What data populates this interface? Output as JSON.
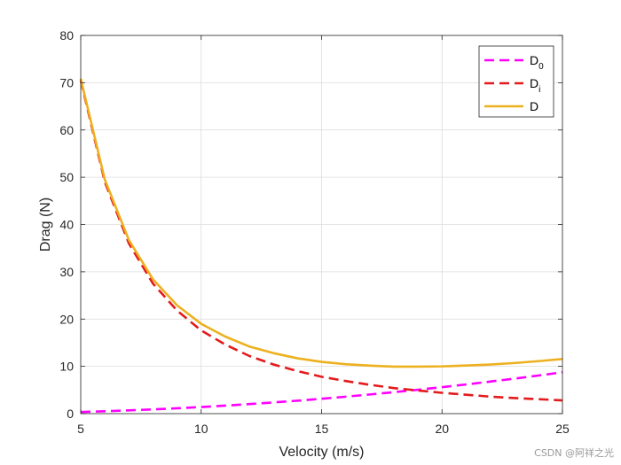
{
  "chart_data": {
    "type": "line",
    "xlabel": "Velocity (m/s)",
    "ylabel": "Drag (N)",
    "xlim": [
      5,
      25
    ],
    "ylim": [
      0,
      80
    ],
    "xticks": [
      5,
      10,
      15,
      20,
      25
    ],
    "yticks": [
      0,
      10,
      20,
      30,
      40,
      50,
      60,
      70,
      80
    ],
    "grid": true,
    "legend_position": "top-right",
    "x": [
      5,
      6,
      7,
      8,
      9,
      10,
      11,
      12,
      13,
      14,
      15,
      16,
      17,
      18,
      19,
      20,
      21,
      22,
      23,
      24,
      25
    ],
    "series": [
      {
        "name": "D",
        "legend_main": "D",
        "legend_sub": "0",
        "color": "#ff00ff",
        "dash": "dashed",
        "values": [
          0.35,
          0.5,
          0.69,
          0.9,
          1.13,
          1.4,
          1.69,
          2.02,
          2.37,
          2.74,
          3.15,
          3.58,
          4.05,
          4.54,
          5.05,
          5.6,
          6.17,
          6.78,
          7.4,
          8.06,
          8.75
        ]
      },
      {
        "name": "D",
        "legend_main": "D",
        "legend_sub": "i",
        "color": "#e41a1c",
        "dash": "dashed",
        "values": [
          70.5,
          49.0,
          36.0,
          27.5,
          21.8,
          17.6,
          14.6,
          12.2,
          10.4,
          9.0,
          7.8,
          6.9,
          6.1,
          5.4,
          4.9,
          4.4,
          4.0,
          3.6,
          3.3,
          3.06,
          2.8
        ]
      },
      {
        "name": "D",
        "legend_main": "D",
        "legend_sub": "",
        "color": "#edb120",
        "dash": "solid",
        "values": [
          70.85,
          49.5,
          36.7,
          28.4,
          22.9,
          19.0,
          16.3,
          14.2,
          12.8,
          11.7,
          10.95,
          10.45,
          10.15,
          9.95,
          9.95,
          10.0,
          10.17,
          10.38,
          10.7,
          11.1,
          11.55
        ]
      }
    ]
  },
  "watermark": "CSDN @阿祥之光"
}
